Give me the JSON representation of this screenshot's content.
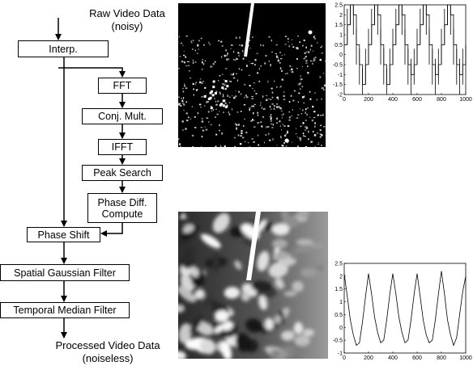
{
  "flow": {
    "input_label": "Raw Video Data",
    "input_sub": "(noisy)",
    "output_label": "Processed Video Data",
    "output_sub": "(noiseless)",
    "steps": {
      "interp": "Interp.",
      "fft": "FFT",
      "conj": "Conj. Mult.",
      "ifft": "IFFT",
      "peak": "Peak Search",
      "phase_diff_1": "Phase Diff.",
      "phase_diff_2": "Compute",
      "phase_shift": "Phase Shift",
      "spatial": "Spatial Gaussian Filter",
      "temporal": "Temporal Median Filter"
    }
  },
  "colors": {
    "line": "#000000",
    "image_bg": "#000000"
  },
  "chart_data": [
    {
      "type": "line",
      "ylim": [
        -2,
        2.5
      ],
      "xlim": [
        0,
        1000
      ],
      "x_ticks": [
        "0",
        "200",
        "400",
        "600",
        "800",
        "1000"
      ],
      "y_ticks": [
        "2.5",
        "2",
        "1.5",
        "1",
        "0.5",
        "0",
        "-0.5",
        "-1",
        "-1.5",
        "-2"
      ],
      "series": [
        {
          "values": [
            0.5,
            1.5,
            2.5,
            2.0,
            0.5,
            -0.5,
            -1.5,
            -0.5,
            0.5,
            1.5,
            2.5,
            2.0,
            0.5,
            -0.5,
            -1.5,
            -0.5,
            0.5,
            1.5,
            2.5,
            2.0,
            0.5,
            -0.5,
            -1.0,
            -0.5,
            0.5,
            1.5,
            2.5,
            2.0,
            0.5,
            -0.5,
            -1.0,
            -0.5,
            0.5,
            1.5,
            2.5,
            2.0,
            0.5,
            -0.5,
            -1.0,
            -0.5,
            0.5
          ]
        }
      ]
    },
    {
      "type": "line",
      "ylim": [
        -1,
        2.5
      ],
      "xlim": [
        0,
        1000
      ],
      "x_ticks": [
        "0",
        "200",
        "400",
        "600",
        "800",
        "1000"
      ],
      "y_ticks": [
        "2.5",
        "2",
        "1.5",
        "1",
        "0.5",
        "0",
        "-0.5",
        "-1"
      ],
      "series": [
        {
          "values": [
            2.1,
            1.2,
            0.3,
            -0.3,
            -0.7,
            -0.6,
            0.2,
            1.2,
            2.1,
            1.3,
            0.4,
            -0.2,
            -0.6,
            -0.5,
            0.3,
            1.3,
            2.1,
            1.3,
            0.4,
            -0.2,
            -0.6,
            -0.5,
            0.3,
            1.3,
            2.1,
            1.2,
            0.3,
            -0.3,
            -0.6,
            -0.5,
            0.3,
            1.3,
            2.2,
            1.3,
            0.3,
            -0.3,
            -0.7,
            -0.4,
            0.5,
            1.4,
            2.0
          ]
        }
      ]
    }
  ]
}
